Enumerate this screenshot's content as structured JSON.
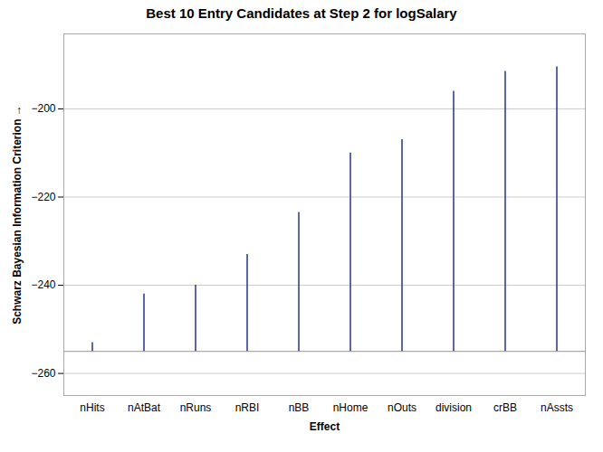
{
  "chart_data": {
    "type": "needle",
    "title": "Best 10 Entry Candidates at Step 2 for logSalary",
    "xlabel": "Effect",
    "ylabel": "Schwarz Bayesian Information Criterion",
    "categories": [
      "nHits",
      "nAtBat",
      "nRuns",
      "nRBI",
      "nBB",
      "nHome",
      "nOuts",
      "division",
      "crBB",
      "nAssts"
    ],
    "values": [
      -253.0,
      -242.0,
      -240.0,
      -233.0,
      -223.5,
      -210.0,
      -207.0,
      -196.0,
      -191.5,
      -190.5
    ],
    "baseline": -255.0,
    "color": "#27348B",
    "ylim": [
      -265,
      -183
    ],
    "yticks": [
      -260,
      -240,
      -220,
      -200
    ],
    "grid": true
  }
}
